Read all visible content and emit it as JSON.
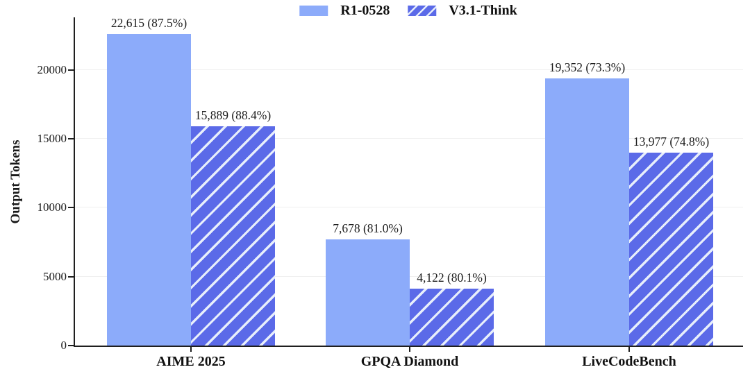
{
  "figure": {
    "background": "#ffffff",
    "text_color": "#1f1f1f"
  },
  "chart_data": {
    "type": "bar",
    "title": "",
    "xlabel": "",
    "ylabel": "Output Tokens",
    "categories": [
      "AIME 2025",
      "GPQA Diamond",
      "LiveCodeBench"
    ],
    "series": [
      {
        "name": "R1-0528",
        "pattern": "solid",
        "color": "#8cabfa",
        "values": [
          22615,
          7678,
          19352
        ],
        "accuracy_percent": [
          87.5,
          81.0,
          73.3
        ],
        "bar_labels": [
          "22,615 (87.5%)",
          "7,678 (81.0%)",
          "19,352 (73.3%)"
        ]
      },
      {
        "name": "V3.1-Think",
        "pattern": "diagonal-hatch",
        "color": "#5b6ae8",
        "hatch_stripe_color": "#e7eefb",
        "values": [
          15889,
          4122,
          13977
        ],
        "accuracy_percent": [
          88.4,
          80.1,
          74.8
        ],
        "bar_labels": [
          "15,889 (88.4%)",
          "4,122 (80.1%)",
          "13,977 (74.8%)"
        ]
      }
    ],
    "y_ticks": [
      0,
      5000,
      10000,
      15000,
      20000
    ],
    "ylim": [
      0,
      23900
    ],
    "grid": {
      "horizontal": true,
      "color": "#f0f0f0"
    },
    "legend": {
      "position": "top-center",
      "entries": [
        "R1-0528",
        "V3.1-Think"
      ]
    }
  }
}
